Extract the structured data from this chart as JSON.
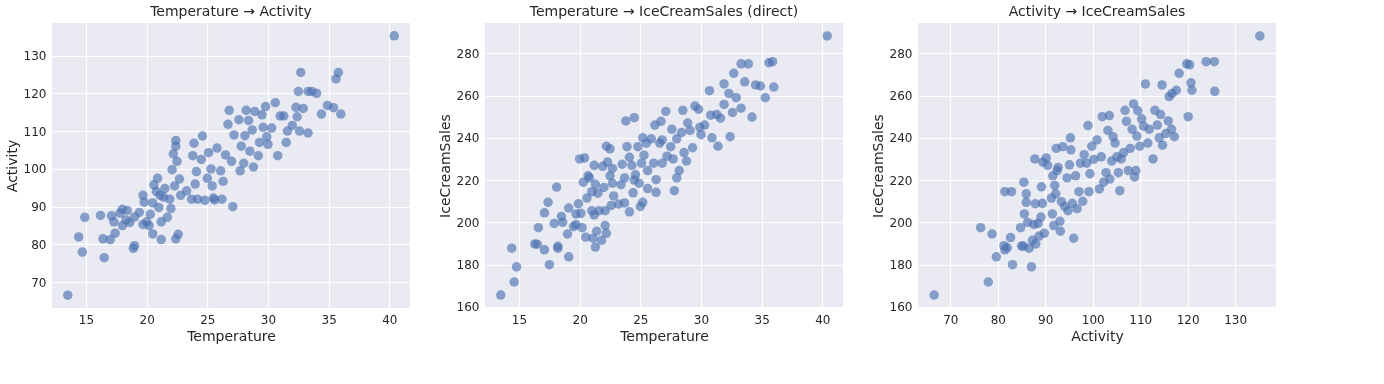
{
  "chart_data": [
    {
      "type": "scatter",
      "title": "Temperature → Activity",
      "xlabel": "Temperature",
      "ylabel": "Activity",
      "color": "#4c72b0",
      "marker": "circle",
      "grid": true,
      "xlim": [
        12.2,
        41.7
      ],
      "ylim": [
        63.2,
        138.6
      ],
      "xticks": [
        15,
        20,
        25,
        30,
        35,
        40
      ],
      "yticks": [
        70,
        80,
        90,
        100,
        110,
        120,
        130
      ],
      "x": [
        13.5,
        40.4,
        14.4,
        14.7,
        14.9,
        16.2,
        16.4,
        16.5,
        17.0,
        17.1,
        17.3,
        17.4,
        17.8,
        18.0,
        18.0,
        18.3,
        18.4,
        18.6,
        18.9,
        19.0,
        19.0,
        19.4,
        19.7,
        19.7,
        19.8,
        20.0,
        20.2,
        20.3,
        20.5,
        20.5,
        20.6,
        20.8,
        20.9,
        21.0,
        21.1,
        21.2,
        21.2,
        21.4,
        21.5,
        21.7,
        21.9,
        22.0,
        22.1,
        22.2,
        22.3,
        22.4,
        22.4,
        22.4,
        22.5,
        22.6,
        22.7,
        22.8,
        23.3,
        23.7,
        23.8,
        23.9,
        24.0,
        24.1,
        24.2,
        24.5,
        24.6,
        24.8,
        25.0,
        25.1,
        25.3,
        25.4,
        25.5,
        25.6,
        25.8,
        26.1,
        26.3,
        26.2,
        26.5,
        26.7,
        26.8,
        27.0,
        27.1,
        27.2,
        27.6,
        27.7,
        27.8,
        28.0,
        28.1,
        28.2,
        28.4,
        28.5,
        28.7,
        28.8,
        28.9,
        29.2,
        29.3,
        29.5,
        29.6,
        29.8,
        29.9,
        30.0,
        30.3,
        30.6,
        30.8,
        31.0,
        31.3,
        31.5,
        31.6,
        32.0,
        32.3,
        32.4,
        32.5,
        32.6,
        32.7,
        32.9,
        33.3,
        33.3,
        33.6,
        34.0,
        34.4,
        34.9,
        35.4,
        35.6,
        35.8,
        36.0
      ],
      "values": [
        66.6,
        135.2,
        82,
        78,
        87.2,
        87.7,
        81.5,
        76.5,
        81.3,
        87.6,
        86,
        83,
        88.3,
        89.3,
        85,
        86.5,
        89,
        85.8,
        79,
        79.7,
        87.3,
        88.5,
        85.3,
        93,
        91.2,
        86,
        85,
        88,
        82.8,
        91,
        95.8,
        94,
        97.5,
        89.8,
        93,
        81.3,
        86,
        92.5,
        94.8,
        87.2,
        92,
        89.5,
        99.8,
        104,
        95.5,
        107.5,
        106,
        81.5,
        102,
        82.7,
        97.3,
        93,
        94.2,
        92,
        103.5,
        106.8,
        96,
        99.3,
        92,
        102.5,
        108.7,
        91.7,
        97.5,
        104.3,
        100,
        95.5,
        92.3,
        91.8,
        105.5,
        99.5,
        96.7,
        92,
        103.7,
        111.8,
        115.5,
        102,
        90,
        109,
        113,
        99.5,
        106,
        101.5,
        108.8,
        115.5,
        112.8,
        104.7,
        110.3,
        100.5,
        115.2,
        103.5,
        107,
        114.3,
        111,
        116.5,
        108.5,
        106.5,
        110.8,
        117.5,
        103.5,
        114,
        114,
        107,
        110,
        111.5,
        116.3,
        113.8,
        120.5,
        110,
        125.5,
        116,
        109.5,
        120.5,
        120.5,
        120,
        114.5,
        116.8,
        116.2,
        123.8,
        125.5,
        114.5
      ]
    },
    {
      "type": "scatter",
      "title": "Temperature → IceCreamSales (direct)",
      "xlabel": "Temperature",
      "ylabel": "IceCreamSales",
      "color": "#4c72b0",
      "marker": "circle",
      "grid": true,
      "xlim": [
        12.2,
        41.7
      ],
      "ylim": [
        159.5,
        294.3
      ],
      "xticks": [
        15,
        20,
        25,
        30,
        35,
        40
      ],
      "yticks": [
        160,
        180,
        200,
        220,
        240,
        260,
        280
      ],
      "x": [
        13.5,
        40.4,
        14.4,
        14.6,
        14.8,
        16.3,
        16.5,
        16.6,
        17.1,
        17.1,
        17.4,
        17.5,
        17.9,
        18.1,
        18.2,
        18.2,
        18.5,
        18.6,
        19.0,
        19.1,
        19.1,
        19.5,
        19.7,
        19.7,
        19.9,
        20.0,
        20.1,
        20.2,
        20.3,
        20.4,
        20.5,
        20.6,
        20.7,
        20.8,
        21.0,
        21.0,
        21.1,
        21.2,
        21.2,
        21.3,
        21.3,
        21.4,
        21.5,
        21.6,
        21.8,
        21.9,
        22.0,
        22.1,
        22.1,
        22.2,
        22.2,
        22.3,
        22.5,
        22.5,
        22.6,
        22.7,
        22.7,
        22.8,
        23.2,
        23.4,
        23.5,
        23.7,
        23.7,
        23.8,
        23.9,
        24.1,
        24.1,
        24.3,
        24.4,
        24.5,
        24.5,
        24.6,
        24.8,
        24.9,
        25.0,
        25.1,
        25.2,
        25.2,
        25.3,
        25.5,
        25.6,
        25.6,
        25.9,
        26.1,
        26.2,
        26.3,
        26.3,
        26.6,
        26.7,
        26.8,
        26.8,
        27.1,
        27.2,
        27.5,
        27.6,
        27.7,
        27.8,
        28.0,
        28.0,
        28.2,
        28.4,
        28.5,
        28.6,
        28.8,
        28.9,
        29.1,
        29.3,
        29.5,
        29.8,
        29.9,
        30.0,
        30.3,
        30.7,
        30.8,
        30.9,
        31.3,
        31.4,
        31.6,
        31.9,
        31.9,
        32.3,
        32.4,
        32.6,
        32.7,
        32.9,
        33.3,
        33.3,
        33.6,
        33.9,
        34.2,
        34.5,
        34.9,
        35.3,
        35.6,
        35.9,
        36.0
      ],
      "values": [
        165.6,
        288.2,
        187.8,
        171.8,
        179,
        189.8,
        189.7,
        197.5,
        187,
        204.5,
        209.5,
        180,
        199.5,
        216.7,
        188.7,
        187.8,
        202.8,
        200,
        194.5,
        206.8,
        183.7,
        198,
        199,
        204,
        208.8,
        230,
        204.3,
        197.5,
        219,
        230.5,
        193,
        211.5,
        222,
        221,
        205.5,
        214.5,
        192.5,
        227,
        203.5,
        218,
        188.3,
        195.8,
        213.8,
        205.5,
        191.5,
        226.5,
        216.5,
        205.5,
        198.5,
        194.8,
        236,
        228.5,
        222,
        234.8,
        208,
        225.5,
        218.5,
        212.5,
        208.7,
        217.8,
        227.5,
        209.2,
        221,
        248,
        235.8,
        205,
        230.8,
        227,
        214,
        249.5,
        220,
        222.5,
        235.8,
        218.5,
        207.5,
        228,
        240,
        209.5,
        231.8,
        237.5,
        224.5,
        216,
        239.5,
        228,
        246,
        220.2,
        214.2,
        237.5,
        247.8,
        239,
        228,
        252.5,
        231.3,
        235.8,
        244,
        230,
        215,
        221,
        239.5,
        224.5,
        242.5,
        253,
        233,
        229,
        247,
        243.5,
        235.3,
        255,
        253.5,
        245,
        241.5,
        246,
        262.3,
        250.7,
        240,
        251,
        236,
        249.3,
        255.8,
        265.5,
        261,
        240.5,
        252,
        270.5,
        259,
        254,
        275,
        266.5,
        275,
        249.8,
        265,
        264.5,
        259,
        275.5,
        276,
        264
      ]
    },
    {
      "type": "scatter",
      "title": "Activity → IceCreamSales",
      "xlabel": "Activity",
      "ylabel": "IceCreamSales",
      "color": "#4c72b0",
      "marker": "circle",
      "grid": true,
      "xlim": [
        63.2,
        138.6
      ],
      "ylim": [
        159.5,
        294.3
      ],
      "xticks": [
        70,
        80,
        90,
        100,
        110,
        120,
        130
      ],
      "yticks": [
        160,
        180,
        200,
        220,
        240,
        260,
        280
      ],
      "x": [
        66.6,
        135.2,
        76.4,
        78,
        78.8,
        79.7,
        81.3,
        81.5,
        81.5,
        82,
        82.7,
        82.9,
        83.1,
        84.8,
        85,
        85.4,
        85.5,
        85.6,
        86,
        86,
        86.3,
        86.6,
        87.1,
        87.3,
        87.6,
        87.8,
        87.9,
        88,
        88.5,
        88.7,
        89.1,
        89.2,
        89.4,
        89.5,
        89.8,
        90.2,
        90.5,
        91.3,
        91.5,
        91.6,
        91.8,
        92,
        92.2,
        92.3,
        92.5,
        92.7,
        93.1,
        93.2,
        93.4,
        93.7,
        94.1,
        94.6,
        94.8,
        95.1,
        95.3,
        95.4,
        95.7,
        96,
        96.4,
        96.7,
        97.1,
        97.4,
        97.9,
        98.2,
        98.7,
        99,
        99.2,
        99.4,
        99.8,
        100.2,
        100.9,
        101.4,
        101.8,
        102,
        102.3,
        102.8,
        103.2,
        103.5,
        103.6,
        104,
        104.3,
        104.7,
        105.1,
        105.4,
        105.7,
        106,
        106.5,
        106.8,
        107.1,
        107.5,
        107.9,
        108.3,
        108.6,
        108.8,
        109.1,
        109.3,
        109.5,
        109.9,
        110.3,
        110.7,
        111.1,
        111.6,
        111.9,
        112.7,
        113.1,
        113.6,
        114,
        114.3,
        114.6,
        114.7,
        115.4,
        115.9,
        116.1,
        116.6,
        116.7,
        117.2,
        117.6,
        118.2,
        119.8,
        120.1,
        120.4,
        120.7,
        120.9,
        123.9,
        125.6,
        125.7
      ],
      "values": [
        165.6,
        288.2,
        197.5,
        171.8,
        194.5,
        183.7,
        189,
        187,
        214.5,
        188,
        192.8,
        214.5,
        180,
        197.5,
        188.8,
        188.8,
        219,
        204,
        209.5,
        213.5,
        200,
        187.8,
        179,
        191.5,
        199,
        230,
        208.8,
        189.8,
        199.5,
        193.5,
        202.5,
        216.8,
        209,
        228.5,
        194.8,
        230.5,
        227,
        211.5,
        204,
        222,
        198.5,
        217.5,
        213.5,
        235,
        224.5,
        226,
        200.5,
        195.8,
        209.8,
        235.8,
        207.5,
        221,
        205.5,
        227.2,
        240,
        234.3,
        209,
        192.5,
        222,
        206.5,
        214.5,
        228,
        210,
        232,
        228,
        245.8,
        214.5,
        223,
        236,
        229.8,
        239,
        215.8,
        231,
        250,
        219,
        223.5,
        243.5,
        250.5,
        220.5,
        229,
        240.5,
        237.5,
        231,
        223.5,
        215,
        230,
        233,
        253,
        247.8,
        224.5,
        235,
        244,
        256,
        221.5,
        224.5,
        240.8,
        252.8,
        236,
        249,
        245.5,
        265.5,
        237.5,
        244,
        230,
        253,
        246,
        240,
        251,
        265,
        236.5,
        242,
        248,
        259.5,
        244,
        261,
        240.5,
        262.5,
        270.5,
        275,
        250,
        274.5,
        266,
        262.5,
        276,
        276,
        262
      ]
    }
  ]
}
